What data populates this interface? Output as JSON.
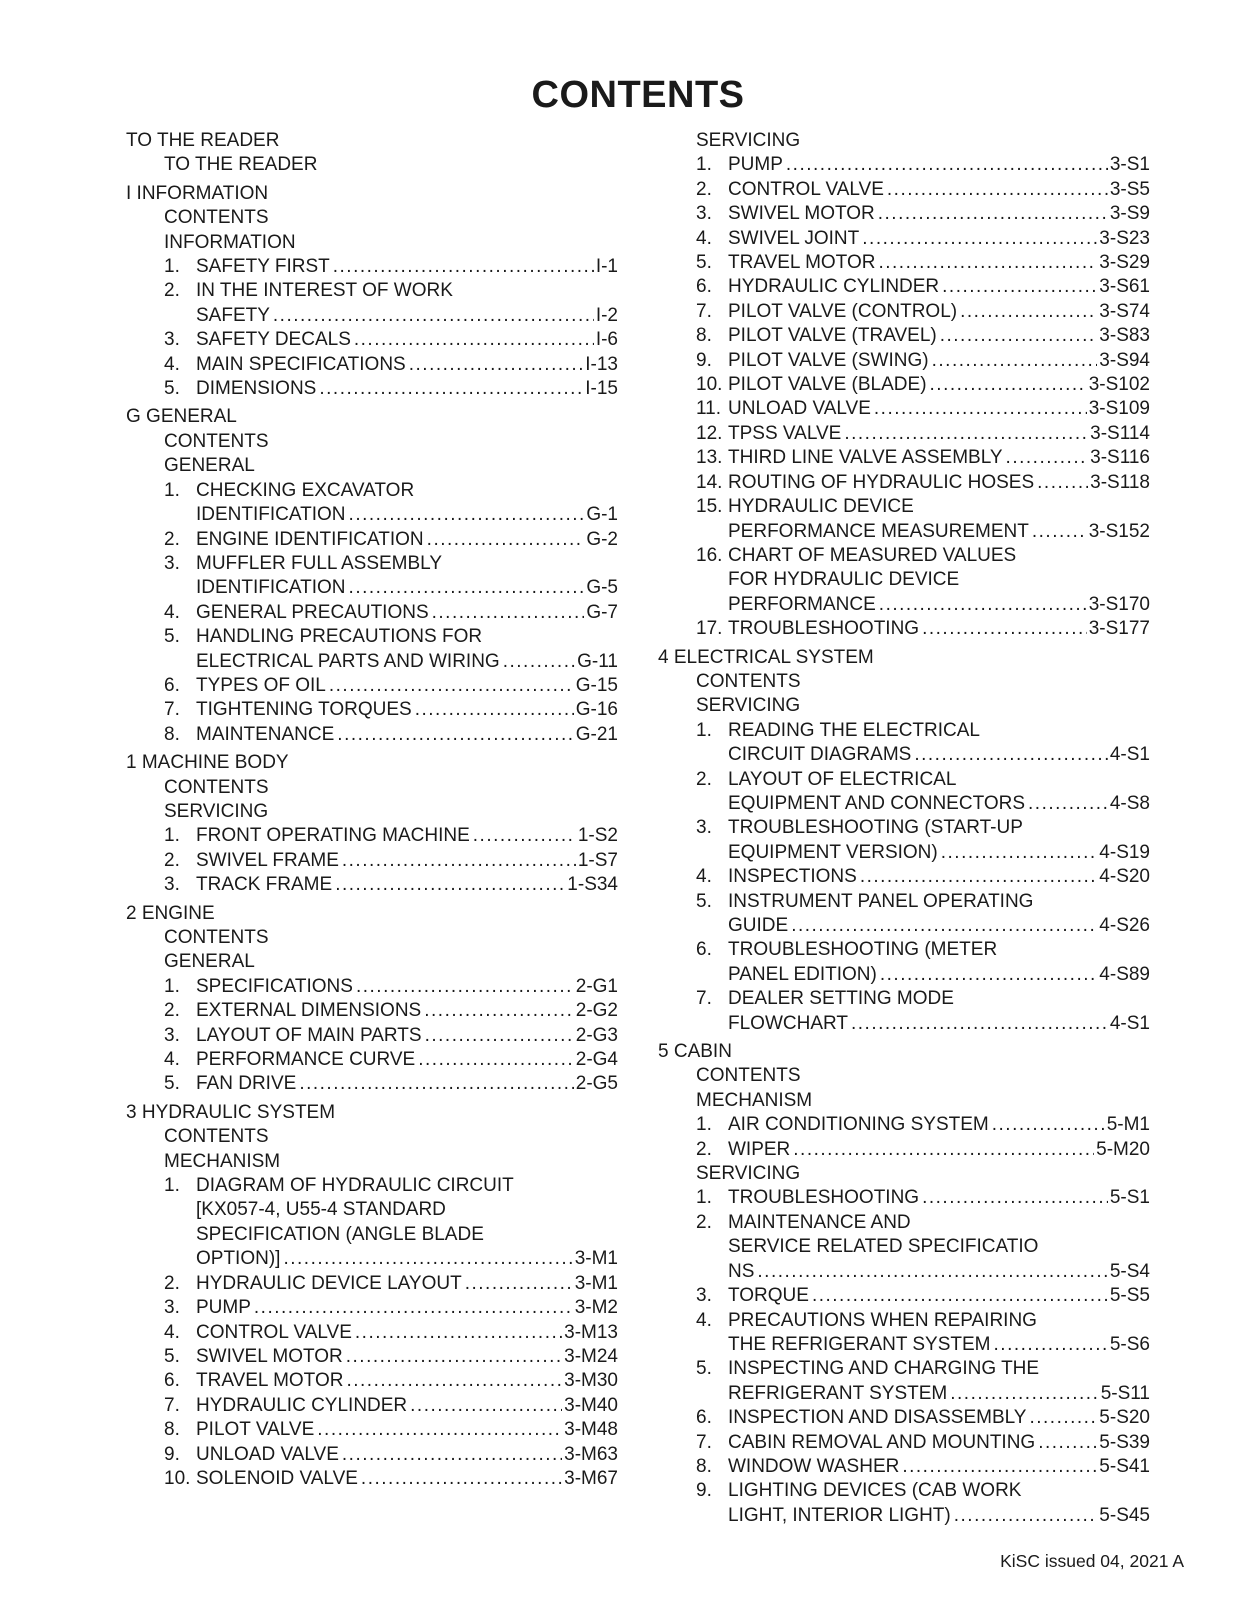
{
  "page": {
    "title": "CONTENTS",
    "footer": "KiSC issued 04, 2021 A",
    "ink_color": "#1a1a1a",
    "background_color": "#ffffff"
  },
  "columns": [
    {
      "blocks": [
        {
          "heading": "TO THE READER",
          "subsections": [
            {
              "label": "TO THE READER",
              "items": []
            }
          ]
        },
        {
          "heading": "I INFORMATION",
          "subsections": [
            {
              "label": "CONTENTS",
              "items": []
            },
            {
              "label": "INFORMATION",
              "items": [
                {
                  "n": "1.",
                  "lines": [
                    "SAFETY FIRST"
                  ],
                  "p": "I-1"
                },
                {
                  "n": "2.",
                  "lines": [
                    "IN THE INTEREST OF WORK",
                    "SAFETY"
                  ],
                  "p": "I-2"
                },
                {
                  "n": "3.",
                  "lines": [
                    "SAFETY DECALS"
                  ],
                  "p": "I-6"
                },
                {
                  "n": "4.",
                  "lines": [
                    "MAIN SPECIFICATIONS"
                  ],
                  "p": "I-13"
                },
                {
                  "n": "5.",
                  "lines": [
                    "DIMENSIONS"
                  ],
                  "p": "I-15"
                }
              ]
            }
          ]
        },
        {
          "heading": "G GENERAL",
          "subsections": [
            {
              "label": "CONTENTS",
              "items": []
            },
            {
              "label": "GENERAL",
              "items": [
                {
                  "n": "1.",
                  "lines": [
                    "CHECKING EXCAVATOR",
                    "IDENTIFICATION"
                  ],
                  "p": "G-1"
                },
                {
                  "n": "2.",
                  "lines": [
                    "ENGINE IDENTIFICATION"
                  ],
                  "p": "G-2"
                },
                {
                  "n": "3.",
                  "lines": [
                    "MUFFLER FULL ASSEMBLY",
                    "IDENTIFICATION"
                  ],
                  "p": "G-5"
                },
                {
                  "n": "4.",
                  "lines": [
                    "GENERAL PRECAUTIONS"
                  ],
                  "p": "G-7"
                },
                {
                  "n": "5.",
                  "lines": [
                    "HANDLING PRECAUTIONS FOR",
                    "ELECTRICAL PARTS AND WIRING"
                  ],
                  "p": "G-11"
                },
                {
                  "n": "6.",
                  "lines": [
                    "TYPES OF OIL"
                  ],
                  "p": "G-15"
                },
                {
                  "n": "7.",
                  "lines": [
                    "TIGHTENING TORQUES"
                  ],
                  "p": "G-16"
                },
                {
                  "n": "8.",
                  "lines": [
                    "MAINTENANCE"
                  ],
                  "p": "G-21"
                }
              ]
            }
          ]
        },
        {
          "heading": "1 MACHINE BODY",
          "subsections": [
            {
              "label": "CONTENTS",
              "items": []
            },
            {
              "label": "SERVICING",
              "items": [
                {
                  "n": "1.",
                  "lines": [
                    "FRONT OPERATING MACHINE"
                  ],
                  "p": "1-S2"
                },
                {
                  "n": "2.",
                  "lines": [
                    "SWIVEL FRAME"
                  ],
                  "p": "1-S7"
                },
                {
                  "n": "3.",
                  "lines": [
                    "TRACK FRAME"
                  ],
                  "p": "1-S34"
                }
              ]
            }
          ]
        },
        {
          "heading": "2 ENGINE",
          "subsections": [
            {
              "label": "CONTENTS",
              "items": []
            },
            {
              "label": "GENERAL",
              "items": [
                {
                  "n": "1.",
                  "lines": [
                    "SPECIFICATIONS"
                  ],
                  "p": "2-G1"
                },
                {
                  "n": "2.",
                  "lines": [
                    "EXTERNAL DIMENSIONS"
                  ],
                  "p": "2-G2"
                },
                {
                  "n": "3.",
                  "lines": [
                    "LAYOUT OF MAIN PARTS"
                  ],
                  "p": "2-G3"
                },
                {
                  "n": "4.",
                  "lines": [
                    "PERFORMANCE CURVE"
                  ],
                  "p": "2-G4"
                },
                {
                  "n": "5.",
                  "lines": [
                    "FAN DRIVE"
                  ],
                  "p": "2-G5"
                }
              ]
            }
          ]
        },
        {
          "heading": "3 HYDRAULIC SYSTEM",
          "subsections": [
            {
              "label": "CONTENTS",
              "items": []
            },
            {
              "label": "MECHANISM",
              "items": [
                {
                  "n": "1.",
                  "lines": [
                    "DIAGRAM OF HYDRAULIC CIRCUIT",
                    "[KX057-4, U55-4 STANDARD",
                    "SPECIFICATION (ANGLE BLADE",
                    "OPTION)]"
                  ],
                  "p": "3-M1"
                },
                {
                  "n": "2.",
                  "lines": [
                    "HYDRAULIC DEVICE LAYOUT"
                  ],
                  "p": "3-M1"
                },
                {
                  "n": "3.",
                  "lines": [
                    "PUMP"
                  ],
                  "p": "3-M2"
                },
                {
                  "n": "4.",
                  "lines": [
                    "CONTROL VALVE"
                  ],
                  "p": "3-M13"
                },
                {
                  "n": "5.",
                  "lines": [
                    "SWIVEL MOTOR"
                  ],
                  "p": "3-M24"
                },
                {
                  "n": "6.",
                  "lines": [
                    "TRAVEL MOTOR"
                  ],
                  "p": "3-M30"
                },
                {
                  "n": "7.",
                  "lines": [
                    "HYDRAULIC CYLINDER"
                  ],
                  "p": "3-M40"
                },
                {
                  "n": "8.",
                  "lines": [
                    "PILOT VALVE"
                  ],
                  "p": "3-M48"
                },
                {
                  "n": "9.",
                  "lines": [
                    "UNLOAD VALVE"
                  ],
                  "p": "3-M63"
                },
                {
                  "n": "10.",
                  "lines": [
                    "SOLENOID VALVE"
                  ],
                  "p": "3-M67"
                }
              ]
            }
          ]
        }
      ]
    },
    {
      "blocks": [
        {
          "heading": null,
          "subsections": [
            {
              "label": "SERVICING",
              "items": [
                {
                  "n": "1.",
                  "lines": [
                    "PUMP"
                  ],
                  "p": "3-S1"
                },
                {
                  "n": "2.",
                  "lines": [
                    "CONTROL VALVE"
                  ],
                  "p": "3-S5"
                },
                {
                  "n": "3.",
                  "lines": [
                    "SWIVEL MOTOR"
                  ],
                  "p": "3-S9"
                },
                {
                  "n": "4.",
                  "lines": [
                    "SWIVEL JOINT"
                  ],
                  "p": "3-S23"
                },
                {
                  "n": "5.",
                  "lines": [
                    "TRAVEL MOTOR"
                  ],
                  "p": "3-S29"
                },
                {
                  "n": "6.",
                  "lines": [
                    "HYDRAULIC CYLINDER"
                  ],
                  "p": "3-S61"
                },
                {
                  "n": "7.",
                  "lines": [
                    "PILOT VALVE (CONTROL)"
                  ],
                  "p": "3-S74"
                },
                {
                  "n": "8.",
                  "lines": [
                    "PILOT VALVE (TRAVEL)"
                  ],
                  "p": "3-S83"
                },
                {
                  "n": "9.",
                  "lines": [
                    "PILOT VALVE (SWING)"
                  ],
                  "p": "3-S94"
                },
                {
                  "n": "10.",
                  "lines": [
                    "PILOT VALVE (BLADE)"
                  ],
                  "p": "3-S102"
                },
                {
                  "n": "11.",
                  "lines": [
                    "UNLOAD VALVE"
                  ],
                  "p": "3-S109"
                },
                {
                  "n": "12.",
                  "lines": [
                    "TPSS VALVE"
                  ],
                  "p": "3-S114"
                },
                {
                  "n": "13.",
                  "lines": [
                    "THIRD LINE VALVE ASSEMBLY"
                  ],
                  "p": "3-S116"
                },
                {
                  "n": "14.",
                  "lines": [
                    "ROUTING OF HYDRAULIC HOSES"
                  ],
                  "p": "3-S118"
                },
                {
                  "n": "15.",
                  "lines": [
                    "HYDRAULIC DEVICE",
                    "PERFORMANCE MEASUREMENT"
                  ],
                  "p": "3-S152"
                },
                {
                  "n": "16.",
                  "lines": [
                    "CHART OF MEASURED VALUES",
                    "FOR HYDRAULIC DEVICE",
                    "PERFORMANCE"
                  ],
                  "p": "3-S170"
                },
                {
                  "n": "17.",
                  "lines": [
                    "TROUBLESHOOTING"
                  ],
                  "p": "3-S177"
                }
              ]
            }
          ]
        },
        {
          "heading": "4 ELECTRICAL SYSTEM",
          "subsections": [
            {
              "label": "CONTENTS",
              "items": []
            },
            {
              "label": "SERVICING",
              "items": [
                {
                  "n": "1.",
                  "lines": [
                    "READING THE ELECTRICAL",
                    "CIRCUIT DIAGRAMS"
                  ],
                  "p": "4-S1"
                },
                {
                  "n": "2.",
                  "lines": [
                    "LAYOUT OF ELECTRICAL",
                    "EQUIPMENT AND CONNECTORS"
                  ],
                  "p": "4-S8"
                },
                {
                  "n": "3.",
                  "lines": [
                    "TROUBLESHOOTING (START-UP",
                    "EQUIPMENT VERSION)"
                  ],
                  "p": "4-S19"
                },
                {
                  "n": "4.",
                  "lines": [
                    "INSPECTIONS"
                  ],
                  "p": "4-S20"
                },
                {
                  "n": "5.",
                  "lines": [
                    "INSTRUMENT PANEL OPERATING",
                    "GUIDE"
                  ],
                  "p": "4-S26"
                },
                {
                  "n": "6.",
                  "lines": [
                    "TROUBLESHOOTING (METER",
                    "PANEL EDITION)"
                  ],
                  "p": "4-S89"
                },
                {
                  "n": "7.",
                  "lines": [
                    "DEALER SETTING MODE",
                    "FLOWCHART"
                  ],
                  "p": "4-S1"
                }
              ]
            }
          ]
        },
        {
          "heading": "5 CABIN",
          "subsections": [
            {
              "label": "CONTENTS",
              "items": []
            },
            {
              "label": "MECHANISM",
              "items": [
                {
                  "n": "1.",
                  "lines": [
                    "AIR CONDITIONING SYSTEM"
                  ],
                  "p": "5-M1"
                },
                {
                  "n": "2.",
                  "lines": [
                    "WIPER"
                  ],
                  "p": "5-M20"
                }
              ]
            },
            {
              "label": "SERVICING",
              "items": [
                {
                  "n": "1.",
                  "lines": [
                    "TROUBLESHOOTING"
                  ],
                  "p": "5-S1"
                },
                {
                  "n": "2.",
                  "lines": [
                    "MAINTENANCE AND",
                    "SERVICE RELATED SPECIFICATIO",
                    "NS"
                  ],
                  "p": "5-S4"
                },
                {
                  "n": "3.",
                  "lines": [
                    "TORQUE"
                  ],
                  "p": "5-S5"
                },
                {
                  "n": "4.",
                  "lines": [
                    "PRECAUTIONS WHEN REPAIRING",
                    "THE REFRIGERANT SYSTEM"
                  ],
                  "p": "5-S6"
                },
                {
                  "n": "5.",
                  "lines": [
                    "INSPECTING AND CHARGING THE",
                    "REFRIGERANT SYSTEM"
                  ],
                  "p": "5-S11"
                },
                {
                  "n": "6.",
                  "lines": [
                    "INSPECTION AND DISASSEMBLY"
                  ],
                  "p": "5-S20"
                },
                {
                  "n": "7.",
                  "lines": [
                    "CABIN REMOVAL AND MOUNTING"
                  ],
                  "p": "5-S39"
                },
                {
                  "n": "8.",
                  "lines": [
                    "WINDOW WASHER"
                  ],
                  "p": "5-S41"
                },
                {
                  "n": "9.",
                  "lines": [
                    "LIGHTING DEVICES (CAB WORK",
                    "LIGHT, INTERIOR LIGHT)"
                  ],
                  "p": "5-S45"
                }
              ]
            }
          ]
        }
      ]
    }
  ]
}
